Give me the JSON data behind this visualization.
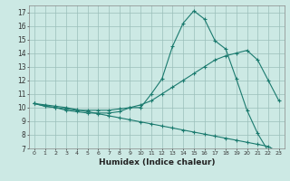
{
  "xlabel": "Humidex (Indice chaleur)",
  "xlim": [
    -0.5,
    23.5
  ],
  "ylim": [
    7,
    17.5
  ],
  "xticks": [
    0,
    1,
    2,
    3,
    4,
    5,
    6,
    7,
    8,
    9,
    10,
    11,
    12,
    13,
    14,
    15,
    16,
    17,
    18,
    19,
    20,
    21,
    22,
    23
  ],
  "yticks": [
    7,
    8,
    9,
    10,
    11,
    12,
    13,
    14,
    15,
    16,
    17
  ],
  "bg_color": "#cce9e4",
  "grid_color": "#9bbfba",
  "line_color": "#1a7a6e",
  "line1_x": [
    0,
    1,
    2,
    3,
    4,
    5,
    6,
    7,
    8,
    9,
    10,
    11,
    12,
    13,
    14,
    15,
    16,
    17,
    18,
    19,
    20,
    21,
    22,
    23
  ],
  "line1_y": [
    10.3,
    10.1,
    10.0,
    9.8,
    9.7,
    9.6,
    9.6,
    9.6,
    9.7,
    10.0,
    10.0,
    11.0,
    12.1,
    14.5,
    16.2,
    17.1,
    16.5,
    14.9,
    14.3,
    12.1,
    9.8,
    8.1,
    6.8,
    6.7
  ],
  "line2_x": [
    0,
    1,
    2,
    3,
    4,
    5,
    6,
    7,
    8,
    9,
    10,
    11,
    12,
    13,
    14,
    15,
    16,
    17,
    18,
    19,
    20,
    21,
    22,
    23
  ],
  "line2_y": [
    10.3,
    10.1,
    10.0,
    9.9,
    9.8,
    9.8,
    9.8,
    9.8,
    9.9,
    10.0,
    10.2,
    10.5,
    11.0,
    11.5,
    12.0,
    12.5,
    13.0,
    13.5,
    13.8,
    14.0,
    14.2,
    13.5,
    12.0,
    10.5
  ],
  "line3_x": [
    0,
    1,
    2,
    3,
    4,
    5,
    6,
    7,
    8,
    9,
    10,
    11,
    12,
    13,
    14,
    15,
    16,
    17,
    18,
    19,
    20,
    21,
    22,
    23
  ],
  "line3_y": [
    10.3,
    10.2,
    10.1,
    10.0,
    9.85,
    9.7,
    9.55,
    9.4,
    9.25,
    9.1,
    8.95,
    8.8,
    8.65,
    8.5,
    8.35,
    8.2,
    8.05,
    7.9,
    7.75,
    7.6,
    7.45,
    7.3,
    7.15,
    6.7
  ]
}
